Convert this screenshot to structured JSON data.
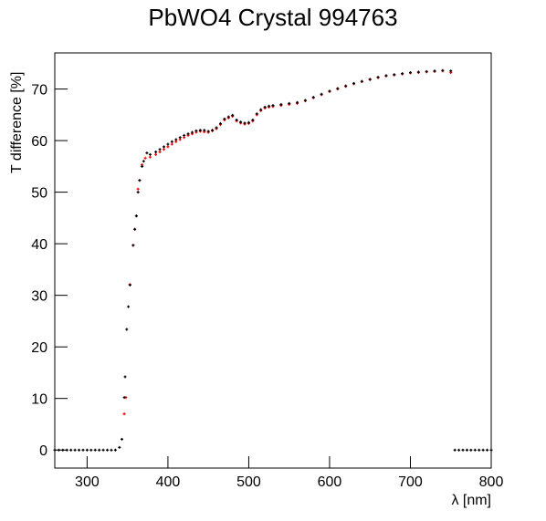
{
  "chart_data": {
    "type": "scatter",
    "title": "PbWO4 Crystal 994763",
    "x_label": "λ [nm]",
    "y_label": "T difference [%]",
    "xlim": [
      260,
      800
    ],
    "ylim": [
      -3.5,
      77
    ],
    "xticks": [
      300,
      400,
      500,
      600,
      700,
      800
    ],
    "yticks": [
      0,
      10,
      20,
      30,
      40,
      50,
      60,
      70
    ],
    "series": [
      {
        "color": "#ff0000",
        "x": [
          346,
          348,
          353,
          357,
          359,
          361,
          363,
          365,
          368,
          372,
          378,
          385,
          390,
          395,
          400,
          405,
          410,
          415,
          420,
          425,
          430,
          435,
          440,
          445,
          450,
          455,
          460,
          465,
          470,
          475,
          480,
          485,
          490,
          495,
          500,
          505,
          510,
          515,
          520,
          525,
          530,
          540,
          550,
          560,
          570,
          580,
          590,
          600,
          610,
          620,
          630,
          640,
          650,
          660,
          670,
          680,
          690,
          700,
          710,
          720,
          730,
          740,
          750
        ],
        "values": [
          7.0,
          10.2,
          32.1,
          39.7,
          42.8,
          45.4,
          50.6,
          52.3,
          55.3,
          56.6,
          56.8,
          57.3,
          57.8,
          58.3,
          58.8,
          59.3,
          59.8,
          60.2,
          60.6,
          61.0,
          61.3,
          61.6,
          61.8,
          61.7,
          61.6,
          61.9,
          62.3,
          63.1,
          64.0,
          64.4,
          64.7,
          63.8,
          63.4,
          63.2,
          63.3,
          63.8,
          65.0,
          65.8,
          66.3,
          66.5,
          66.6,
          66.8,
          67.0,
          67.2,
          67.7,
          68.3,
          68.9,
          69.5,
          70.0,
          70.5,
          71.0,
          71.4,
          71.8,
          72.2,
          72.5,
          72.7,
          72.9,
          73.1,
          73.2,
          73.3,
          73.4,
          73.5,
          73.2
        ]
      },
      {
        "color": "#000000",
        "x": [
          260,
          265,
          270,
          275,
          280,
          285,
          290,
          295,
          300,
          305,
          310,
          315,
          320,
          325,
          330,
          335,
          340,
          343,
          346,
          347,
          349,
          351,
          353,
          357,
          359,
          361,
          363,
          365,
          368,
          370,
          374,
          378,
          385,
          390,
          395,
          400,
          405,
          410,
          415,
          420,
          425,
          430,
          435,
          440,
          445,
          450,
          455,
          460,
          465,
          470,
          475,
          480,
          485,
          490,
          495,
          500,
          505,
          510,
          515,
          520,
          525,
          530,
          540,
          550,
          560,
          570,
          580,
          590,
          600,
          610,
          620,
          630,
          640,
          650,
          660,
          670,
          680,
          690,
          700,
          710,
          720,
          730,
          740,
          750,
          755,
          760,
          765,
          770,
          775,
          780,
          785,
          790,
          795,
          800
        ],
        "values": [
          0,
          0,
          0,
          0,
          0,
          0,
          0,
          0,
          0,
          0,
          0,
          0,
          0,
          0,
          0,
          0,
          0.5,
          2.1,
          10.2,
          14.2,
          23.4,
          27.8,
          32,
          39.7,
          42.8,
          45.4,
          50,
          52.3,
          55,
          56,
          57.6,
          57.3,
          57.8,
          58.3,
          58.8,
          59.3,
          59.8,
          60.2,
          60.6,
          61.0,
          61.3,
          61.6,
          61.9,
          62.0,
          62.0,
          61.8,
          62.0,
          62.5,
          63.3,
          64.2,
          64.6,
          64.9,
          64.0,
          63.6,
          63.4,
          63.5,
          64.0,
          65.2,
          66.0,
          66.5,
          66.7,
          66.8,
          67.0,
          67.2,
          67.4,
          67.8,
          68.4,
          69.0,
          69.6,
          70.1,
          70.6,
          71.1,
          71.5,
          71.9,
          72.3,
          72.6,
          72.8,
          73.0,
          73.2,
          73.3,
          73.4,
          73.5,
          73.6,
          73.5,
          0,
          0,
          0,
          0,
          0,
          0,
          0,
          0,
          0,
          0
        ]
      }
    ]
  }
}
